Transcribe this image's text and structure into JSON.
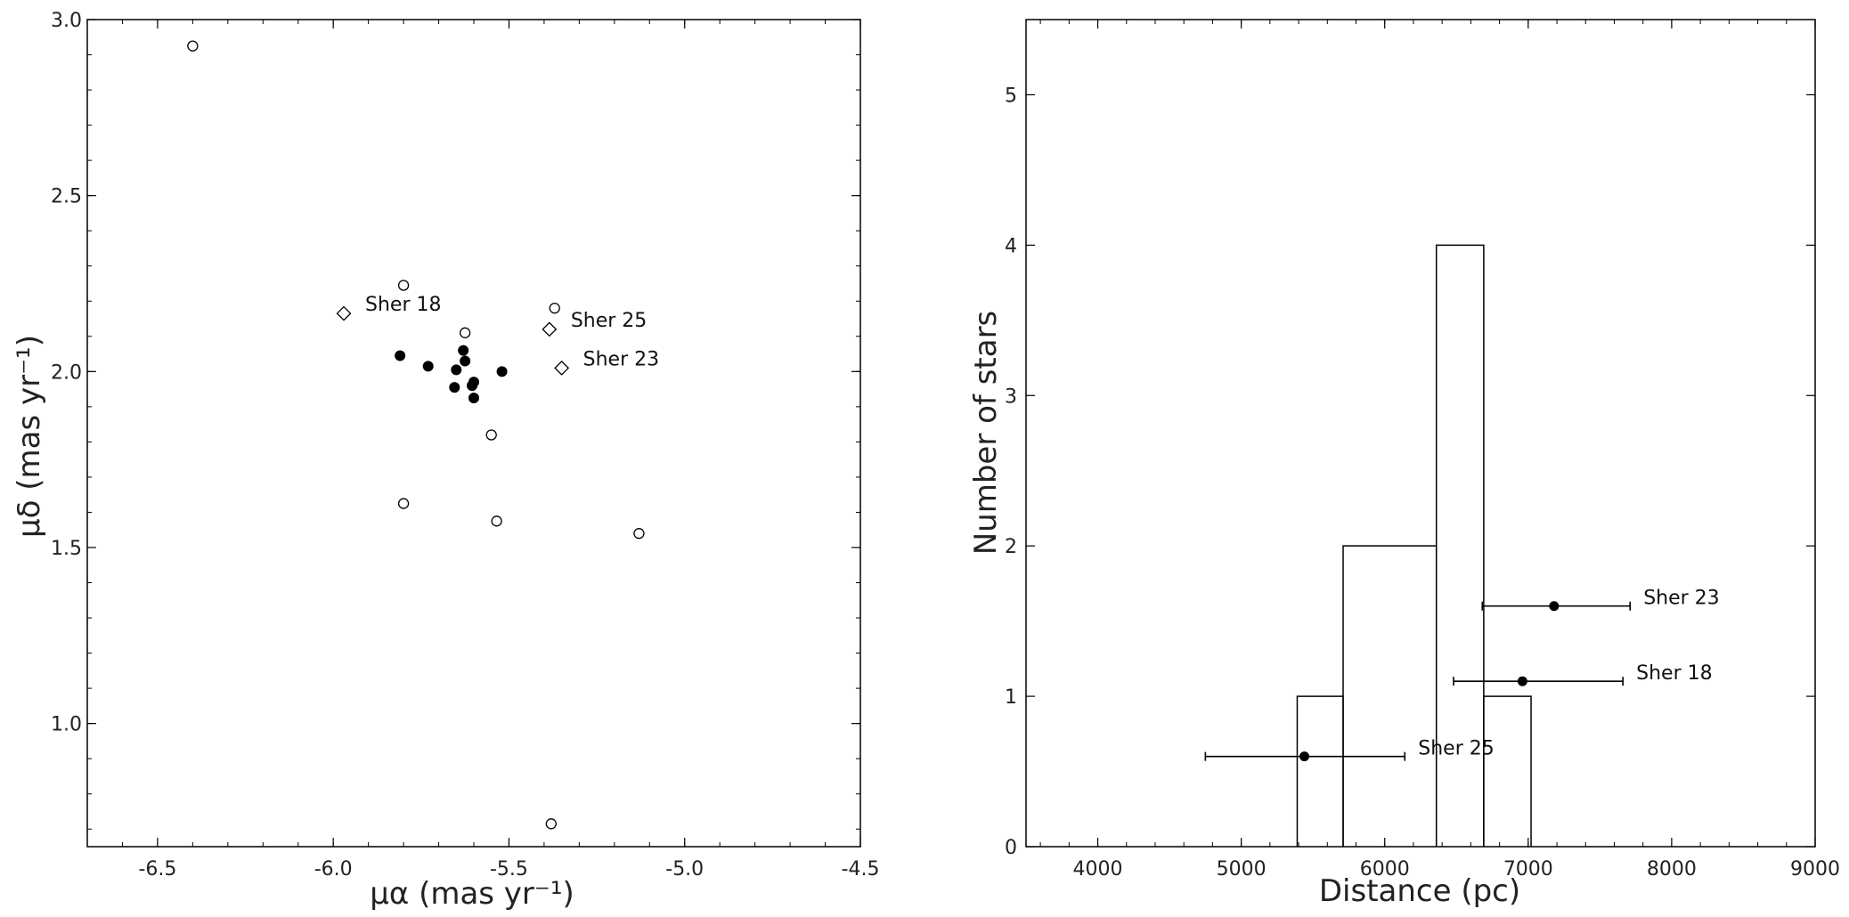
{
  "chart_data": [
    {
      "type": "scatter",
      "xlabel": "μα (mas yr⁻¹)",
      "ylabel": "μδ (mas yr⁻¹)",
      "xlim": [
        -6.7,
        -4.5
      ],
      "ylim": [
        0.65,
        3.0
      ],
      "xticks": [
        "-6.5",
        "-6.0",
        "-5.5",
        "-5.0",
        "-4.5"
      ],
      "yticks": [
        "1.0",
        "1.5",
        "2.0",
        "2.5",
        "3.0"
      ],
      "series": [
        {
          "marker": "filled-circle",
          "points": [
            {
              "x": -5.81,
              "y": 2.045
            },
            {
              "x": -5.73,
              "y": 2.015
            },
            {
              "x": -5.65,
              "y": 2.005
            },
            {
              "x": -5.63,
              "y": 2.06
            },
            {
              "x": -5.625,
              "y": 2.03
            },
            {
              "x": -5.6,
              "y": 1.97
            },
            {
              "x": -5.605,
              "y": 1.96
            },
            {
              "x": -5.6,
              "y": 1.925
            },
            {
              "x": -5.655,
              "y": 1.955
            },
            {
              "x": -5.52,
              "y": 2.0
            }
          ]
        },
        {
          "marker": "open-circle",
          "points": [
            {
              "x": -6.4,
              "y": 2.925
            },
            {
              "x": -5.8,
              "y": 2.245
            },
            {
              "x": -5.625,
              "y": 2.11
            },
            {
              "x": -5.37,
              "y": 2.18
            },
            {
              "x": -5.55,
              "y": 1.82
            },
            {
              "x": -5.8,
              "y": 1.625
            },
            {
              "x": -5.535,
              "y": 1.575
            },
            {
              "x": -5.13,
              "y": 1.54
            },
            {
              "x": -5.38,
              "y": 0.715
            }
          ]
        },
        {
          "marker": "open-diamond",
          "points": [
            {
              "x": -5.97,
              "y": 2.165,
              "label": "Sher 18"
            },
            {
              "x": -5.385,
              "y": 2.12,
              "label": "Sher 25"
            },
            {
              "x": -5.35,
              "y": 2.01,
              "label": "Sher 23"
            }
          ]
        }
      ]
    },
    {
      "type": "histogram",
      "xlabel": "Distance (pc)",
      "ylabel": "Number of stars",
      "xlim": [
        3500,
        9000
      ],
      "ylim": [
        0,
        5.5
      ],
      "xticks": [
        "4000",
        "5000",
        "6000",
        "7000",
        "8000",
        "9000"
      ],
      "yticks": [
        "0",
        "1",
        "2",
        "3",
        "4",
        "5"
      ],
      "bins": [
        {
          "x0": 5390,
          "x1": 5710,
          "count": 1
        },
        {
          "x0": 5710,
          "x1": 6360,
          "count": 2
        },
        {
          "x0": 6360,
          "x1": 6690,
          "count": 4
        },
        {
          "x0": 6690,
          "x1": 7020,
          "count": 1
        }
      ],
      "errorbars": [
        {
          "label": "Sher 23",
          "x": 7180,
          "y": 1.6,
          "xerr_low": 500,
          "xerr_high": 530
        },
        {
          "label": "Sher 18",
          "x": 6960,
          "y": 1.1,
          "xerr_low": 480,
          "xerr_high": 700
        },
        {
          "label": "Sher 25",
          "x": 5440,
          "y": 0.6,
          "xerr_low": 690,
          "xerr_high": 700
        }
      ]
    }
  ]
}
